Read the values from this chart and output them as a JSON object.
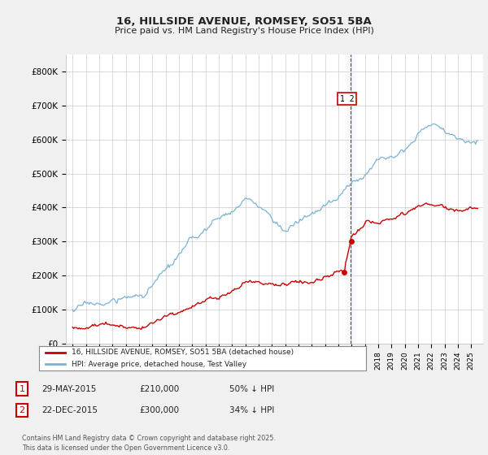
{
  "title": "16, HILLSIDE AVENUE, ROMSEY, SO51 5BA",
  "subtitle": "Price paid vs. HM Land Registry's House Price Index (HPI)",
  "hpi_color": "#7ab3d4",
  "price_color": "#cc0000",
  "vline_color": "#cc0000",
  "vband_color": "#ddeeff",
  "dot_color": "#cc0000",
  "background_color": "#f0f0f0",
  "plot_bg_color": "#ffffff",
  "grid_color": "#cccccc",
  "ylim": [
    0,
    850000
  ],
  "yticks": [
    0,
    100000,
    200000,
    300000,
    400000,
    500000,
    600000,
    700000,
    800000
  ],
  "ytick_labels": [
    "£0",
    "£100K",
    "£200K",
    "£300K",
    "£400K",
    "£500K",
    "£600K",
    "£700K",
    "£800K"
  ],
  "sale1_date": 2015.41,
  "sale1_price": 210000,
  "sale2_date": 2015.98,
  "sale2_price": 300000,
  "vline_x": 2015.95,
  "legend_red_label": "16, HILLSIDE AVENUE, ROMSEY, SO51 5BA (detached house)",
  "legend_blue_label": "HPI: Average price, detached house, Test Valley",
  "table_rows": [
    {
      "num": "1",
      "date": "29-MAY-2015",
      "price": "£210,000",
      "hpi": "50% ↓ HPI"
    },
    {
      "num": "2",
      "date": "22-DEC-2015",
      "price": "£300,000",
      "hpi": "34% ↓ HPI"
    }
  ],
  "footer": "Contains HM Land Registry data © Crown copyright and database right 2025.\nThis data is licensed under the Open Government Licence v3.0."
}
